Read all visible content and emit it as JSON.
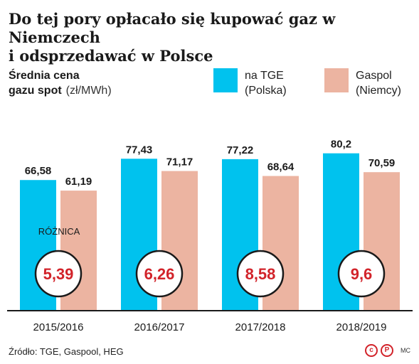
{
  "title_line1": "Do tej pory opłacało się kupować gaz w Niemczech",
  "title_line2": "i odsprzedawać w Polsce",
  "subtitle_line1": "Średnia cena",
  "subtitle_line2": "gazu spot",
  "unit": "(zł/MWh)",
  "legend": [
    {
      "line1": "na TGE",
      "line2": "(Polska)",
      "color": "#00c2ee"
    },
    {
      "line1": "Gaspol",
      "line2": "(Niemcy)",
      "color": "#ecb4a1"
    }
  ],
  "diff_label": "RÓŻNICA",
  "footer": "Źródło: TGE, Gaspool, HEG",
  "logo_text": "MC",
  "colors": {
    "diff_text": "#d2232a",
    "axis": "#1a1a1a"
  },
  "chart_data": {
    "type": "bar",
    "categories": [
      "2015/2016",
      "2016/2017",
      "2017/2018",
      "2018/2019"
    ],
    "series": [
      {
        "name": "na TGE (Polska)",
        "values": [
          66.58,
          77.43,
          77.22,
          80.2
        ],
        "labels": [
          "66,58",
          "77,43",
          "77,22",
          "80,2"
        ]
      },
      {
        "name": "Gaspol (Niemcy)",
        "values": [
          61.19,
          71.17,
          68.64,
          70.59
        ],
        "labels": [
          "61,19",
          "71,17",
          "68,64",
          "70,59"
        ]
      }
    ],
    "differences": [
      5.39,
      6.26,
      8.58,
      9.6
    ],
    "difference_labels": [
      "5,39",
      "6,26",
      "8,58",
      "9,6"
    ],
    "ylim": [
      0,
      100
    ]
  }
}
